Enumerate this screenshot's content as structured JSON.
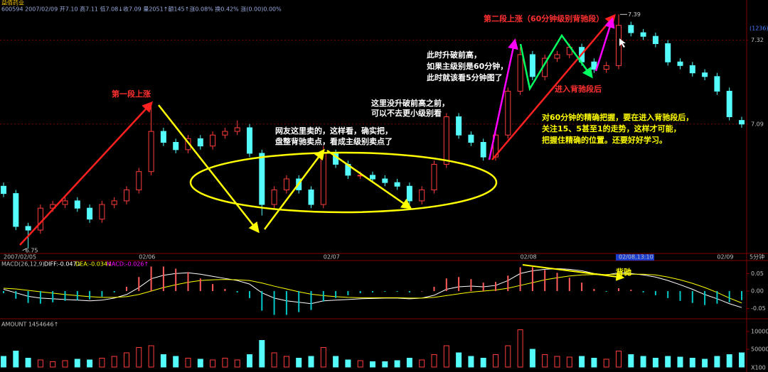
{
  "header": {
    "name": "益佰药业",
    "quote": "600594 2007/02/09 开7.10 高7.11 低7.08↓收7.09 量2051↑额145↑涨0.08% 换0.42% 涨(0.00)0.00%"
  },
  "annotations": {
    "first_rise": "第一段上涨",
    "friend_sold": [
      "网友这里卖的，这样看，确实把，",
      "盘整背驰卖点，看成主级别卖点了"
    ],
    "no_break": [
      "这里没升破前高之前，",
      "可以不去更小级别看"
    ],
    "break_high": [
      "此时升破前高，",
      "如果主级别是60分钟，",
      "此时就该看5分钟图了"
    ],
    "second_rise": "第二段上涨（60分钟级别背驰段）",
    "enter_div": "进入背驰段后",
    "advice": [
      "对60分钟的精确把握，要在进入背驰段后，",
      "关注15、5甚至1的走势，这样才可能，",
      "把握住精确的位置。还要好好学习。"
    ],
    "divergence": "背驰"
  },
  "chart_data": [
    {
      "type": "candlestick",
      "period": "5分钟",
      "top_label": "(1236)",
      "high_label": 7.39,
      "low_label": 6.75,
      "categories": [
        "2007/02/05",
        null,
        null,
        null,
        null,
        null,
        null,
        null,
        null,
        null,
        null,
        "02/06",
        null,
        null,
        null,
        null,
        null,
        null,
        null,
        null,
        null,
        null,
        null,
        null,
        null,
        null,
        "02/07",
        null,
        null,
        null,
        null,
        null,
        null,
        null,
        null,
        null,
        null,
        null,
        null,
        null,
        null,
        null,
        "02/08",
        null,
        null,
        null,
        null,
        null,
        null,
        null,
        "02/08,13:10",
        null,
        null,
        null,
        null,
        null,
        null,
        null,
        "02/09",
        null,
        null
      ],
      "open": [
        6.92,
        6.9,
        6.81,
        6.8,
        6.86,
        6.87,
        6.88,
        6.86,
        6.83,
        6.87,
        6.88,
        6.91,
        6.96,
        7.07,
        7.04,
        7.02,
        7.05,
        7.03,
        7.06,
        7.07,
        7.08,
        7.01,
        6.87,
        6.91,
        6.94,
        6.91,
        6.87,
        7.01,
        6.98,
        6.95,
        6.95,
        6.94,
        6.93,
        6.92,
        6.88,
        6.91,
        6.98,
        7.11,
        7.06,
        7.04,
        7.0,
        7.06,
        7.18,
        7.28,
        7.22,
        7.27,
        7.28,
        7.3,
        7.26,
        7.24,
        7.25,
        7.36,
        7.34,
        7.33,
        7.31,
        7.26,
        7.25,
        7.23,
        7.22,
        7.18,
        7.1
      ],
      "high": [
        6.93,
        6.91,
        6.82,
        6.87,
        6.88,
        6.89,
        6.89,
        6.87,
        6.88,
        6.89,
        6.92,
        6.97,
        7.15,
        7.08,
        7.05,
        7.06,
        7.06,
        7.07,
        7.08,
        7.1,
        7.09,
        7.02,
        6.92,
        6.95,
        6.95,
        6.92,
        7.03,
        7.02,
        6.99,
        6.96,
        6.96,
        6.95,
        6.94,
        6.93,
        6.92,
        6.99,
        7.12,
        7.12,
        7.07,
        7.05,
        7.07,
        7.19,
        7.3,
        7.29,
        7.28,
        7.29,
        7.31,
        7.31,
        7.27,
        7.26,
        7.39,
        7.37,
        7.35,
        7.34,
        7.32,
        7.27,
        7.26,
        7.24,
        7.23,
        7.19,
        7.11
      ],
      "low": [
        6.89,
        6.8,
        6.75,
        6.79,
        6.85,
        6.86,
        6.85,
        6.82,
        6.82,
        6.86,
        6.87,
        6.9,
        6.95,
        7.03,
        7.01,
        7.01,
        7.02,
        7.02,
        7.05,
        7.06,
        7.0,
        6.84,
        6.86,
        6.9,
        6.9,
        6.86,
        6.86,
        6.97,
        6.94,
        6.94,
        6.93,
        6.92,
        6.91,
        6.87,
        6.87,
        6.9,
        6.97,
        7.05,
        7.03,
        6.99,
        6.99,
        7.05,
        7.17,
        7.21,
        7.21,
        7.26,
        7.27,
        7.25,
        7.23,
        7.23,
        7.24,
        7.33,
        7.32,
        7.3,
        7.25,
        7.24,
        7.22,
        7.21,
        7.17,
        7.1,
        7.08
      ],
      "close": [
        6.9,
        6.81,
        6.8,
        6.86,
        6.87,
        6.88,
        6.86,
        6.83,
        6.87,
        6.88,
        6.91,
        6.96,
        7.07,
        7.04,
        7.02,
        7.05,
        7.03,
        7.06,
        7.07,
        7.08,
        7.01,
        6.87,
        6.91,
        6.94,
        6.91,
        6.87,
        7.01,
        6.98,
        6.95,
        6.95,
        6.94,
        6.93,
        6.92,
        6.88,
        6.91,
        6.98,
        7.11,
        7.06,
        7.04,
        7.0,
        7.06,
        7.18,
        7.28,
        7.22,
        7.27,
        7.28,
        7.3,
        7.26,
        7.24,
        7.25,
        7.36,
        7.34,
        7.33,
        7.31,
        7.26,
        7.25,
        7.23,
        7.22,
        7.18,
        7.11,
        7.09
      ],
      "up_color": "#ff3c3c",
      "down_color": "#54fcfc",
      "ylim": [
        6.74,
        7.41
      ],
      "yticks": [
        7.32,
        7.09
      ]
    },
    {
      "type": "macd",
      "title": "MACD(26,12,9)",
      "ylim": [
        -0.075,
        0.085
      ],
      "yticks": [
        0.05,
        {
          "value": 0,
          "label": "0.00"
        },
        -0.05
      ],
      "pos_color": "#ff5a5a",
      "neg_color": "#00c8c8",
      "series": [
        {
          "name": "DIFF",
          "readout": "DIFF:-0.047↓",
          "color": "#ffffff",
          "values": [
            0.005,
            -0.005,
            -0.015,
            -0.02,
            -0.022,
            -0.024,
            -0.026,
            -0.028,
            -0.026,
            -0.02,
            -0.01,
            0.01,
            0.035,
            0.045,
            0.05,
            0.052,
            0.048,
            0.042,
            0.036,
            0.03,
            0.02,
            -0.005,
            -0.02,
            -0.028,
            -0.032,
            -0.036,
            -0.028,
            -0.026,
            -0.024,
            -0.022,
            -0.021,
            -0.02,
            -0.02,
            -0.022,
            -0.02,
            -0.012,
            0.005,
            0.012,
            0.014,
            0.012,
            0.016,
            0.03,
            0.05,
            0.058,
            0.062,
            0.064,
            0.062,
            0.058,
            0.05,
            0.046,
            0.052,
            0.05,
            0.046,
            0.04,
            0.03,
            0.018,
            0.005,
            -0.01,
            -0.022,
            -0.036,
            -0.047
          ]
        },
        {
          "name": "DEA",
          "readout": "DEA:-0.034↓",
          "color": "#ffff00",
          "values": [
            0.008,
            0.006,
            0.002,
            -0.002,
            -0.006,
            -0.01,
            -0.013,
            -0.016,
            -0.018,
            -0.018,
            -0.016,
            -0.01,
            0.0,
            0.01,
            0.018,
            0.025,
            0.03,
            0.032,
            0.033,
            0.032,
            0.03,
            0.023,
            0.014,
            0.006,
            -0.002,
            -0.009,
            -0.013,
            -0.016,
            -0.018,
            -0.019,
            -0.019,
            -0.019,
            -0.019,
            -0.02,
            -0.02,
            -0.018,
            -0.013,
            -0.008,
            -0.003,
            0.0,
            0.003,
            0.008,
            0.016,
            0.024,
            0.032,
            0.038,
            0.043,
            0.046,
            0.047,
            0.047,
            0.048,
            0.048,
            0.048,
            0.046,
            0.04,
            0.032,
            0.022,
            0.01,
            -0.004,
            -0.02,
            -0.034
          ]
        },
        {
          "name": "MACD",
          "readout": "MACD:-0.026↑",
          "color": "#ff00ff",
          "values": [
            -0.006,
            -0.022,
            -0.034,
            -0.036,
            -0.032,
            -0.028,
            -0.026,
            -0.024,
            -0.016,
            -0.004,
            0.012,
            0.04,
            0.07,
            0.07,
            0.064,
            0.054,
            0.036,
            0.02,
            0.006,
            -0.004,
            -0.02,
            -0.056,
            -0.068,
            -0.068,
            -0.06,
            -0.054,
            -0.03,
            -0.02,
            -0.012,
            -0.006,
            -0.004,
            -0.002,
            -0.002,
            -0.004,
            0,
            0.012,
            0.036,
            0.04,
            0.034,
            0.024,
            0.026,
            0.044,
            0.068,
            0.068,
            0.06,
            0.052,
            0.038,
            0.024,
            0.006,
            -0.002,
            0.008,
            0.004,
            -0.004,
            -0.012,
            -0.02,
            -0.028,
            -0.034,
            -0.04,
            -0.036,
            -0.032,
            -0.026
          ]
        }
      ]
    },
    {
      "type": "bar",
      "title": "AMOUNT 1454646↑",
      "unit_label": "X100",
      "ylim": [
        0,
        110000
      ],
      "yticks": [
        100000,
        50000
      ],
      "values": [
        30000,
        45000,
        25000,
        20000,
        15000,
        18000,
        22000,
        20000,
        25000,
        30000,
        40000,
        55000,
        60000,
        35000,
        30000,
        25000,
        22000,
        20000,
        25000,
        20000,
        35000,
        75000,
        40000,
        30000,
        25000,
        30000,
        55000,
        30000,
        20000,
        18000,
        15000,
        15000,
        18000,
        25000,
        20000,
        35000,
        60000,
        40000,
        30000,
        25000,
        35000,
        60000,
        105000,
        50000,
        35000,
        30000,
        28000,
        30000,
        25000,
        22000,
        45000,
        35000,
        30000,
        25000,
        30000,
        28000,
        25000,
        22000,
        30000,
        35000,
        40000
      ]
    }
  ]
}
